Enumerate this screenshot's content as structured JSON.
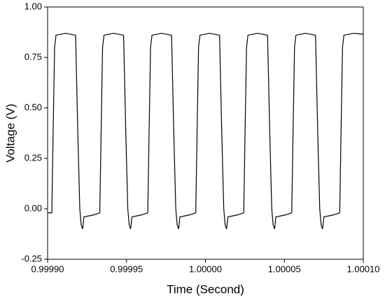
{
  "chart_data": {
    "type": "line",
    "xlabel": "Time (Second)",
    "ylabel": "Voltage (V)",
    "color": "#000000",
    "xlim": [
      0.9999,
      1.0001
    ],
    "xticks": [
      {
        "value": 0.9999,
        "label": "0.99990"
      },
      {
        "value": 0.99995,
        "label": "0.99995"
      },
      {
        "value": 1.0,
        "label": "1.00000"
      },
      {
        "value": 1.00005,
        "label": "1.00005"
      },
      {
        "value": 1.0001,
        "label": "1.00010"
      }
    ],
    "ylim": [
      -0.25,
      1.0
    ],
    "yticks": [
      {
        "value": -0.25,
        "label": "-0.25"
      },
      {
        "value": 0,
        "label": "0.00"
      },
      {
        "value": 0.25,
        "label": "0.25"
      },
      {
        "value": 0.5,
        "label": "0.50"
      },
      {
        "value": 0.75,
        "label": "0.75"
      },
      {
        "value": 1.0,
        "label": "1.00"
      }
    ],
    "x": [
      0.9999,
      0.99990266,
      0.99990355,
      0.99990443,
      0.99990532,
      0.99991153,
      0.99991774,
      0.99991907,
      0.9999204,
      0.99992129,
      0.99992217,
      0.99992306,
      0.99992927,
      0.99993306,
      0.99993395,
      0.99993483,
      0.99993572,
      0.99994193,
      0.99994814,
      0.99994947,
      0.9999508,
      0.99995169,
      0.99995257,
      0.99995346,
      0.99995967,
      0.99996346,
      0.99996435,
      0.99996523,
      0.99996612,
      0.99997233,
      0.99997854,
      0.99997987,
      0.9999812,
      0.99998209,
      0.99998297,
      0.99998386,
      0.99999007,
      0.99999386,
      0.99999475,
      0.99999563,
      0.99999652,
      1.00000273,
      1.00000894,
      1.00001027,
      1.0000116,
      1.00001249,
      1.00001337,
      1.00001426,
      1.00002047,
      1.00002426,
      1.00002515,
      1.00002603,
      1.00002692,
      1.00003313,
      1.00003934,
      1.00004067,
      1.000042,
      1.00004289,
      1.00004377,
      1.00004466,
      1.00005087,
      1.00005466,
      1.00005555,
      1.00005643,
      1.00005732,
      1.00006353,
      1.00006974,
      1.00007107,
      1.0000724,
      1.00007329,
      1.00007417,
      1.00007506,
      1.00008127,
      1.00008506,
      1.00008595,
      1.00008683,
      1.00008772,
      1.00009393,
      1.0001
    ],
    "values": [
      -0.02,
      -0.02,
      0.4,
      0.8,
      0.86,
      0.87,
      0.86,
      0.4,
      0.0,
      -0.08,
      -0.1,
      -0.04,
      -0.03,
      -0.02,
      0.4,
      0.8,
      0.86,
      0.87,
      0.86,
      0.4,
      0.0,
      -0.08,
      -0.1,
      -0.04,
      -0.03,
      -0.02,
      0.4,
      0.8,
      0.86,
      0.87,
      0.86,
      0.4,
      0.0,
      -0.08,
      -0.1,
      -0.04,
      -0.03,
      -0.02,
      0.4,
      0.8,
      0.86,
      0.87,
      0.86,
      0.4,
      0.0,
      -0.08,
      -0.1,
      -0.04,
      -0.03,
      -0.02,
      0.4,
      0.8,
      0.86,
      0.87,
      0.86,
      0.4,
      0.0,
      -0.08,
      -0.1,
      -0.04,
      -0.03,
      -0.02,
      0.4,
      0.8,
      0.86,
      0.87,
      0.86,
      0.4,
      0.0,
      -0.08,
      -0.1,
      -0.04,
      -0.03,
      -0.02,
      0.4,
      0.8,
      0.86,
      0.87,
      0.865
    ]
  }
}
